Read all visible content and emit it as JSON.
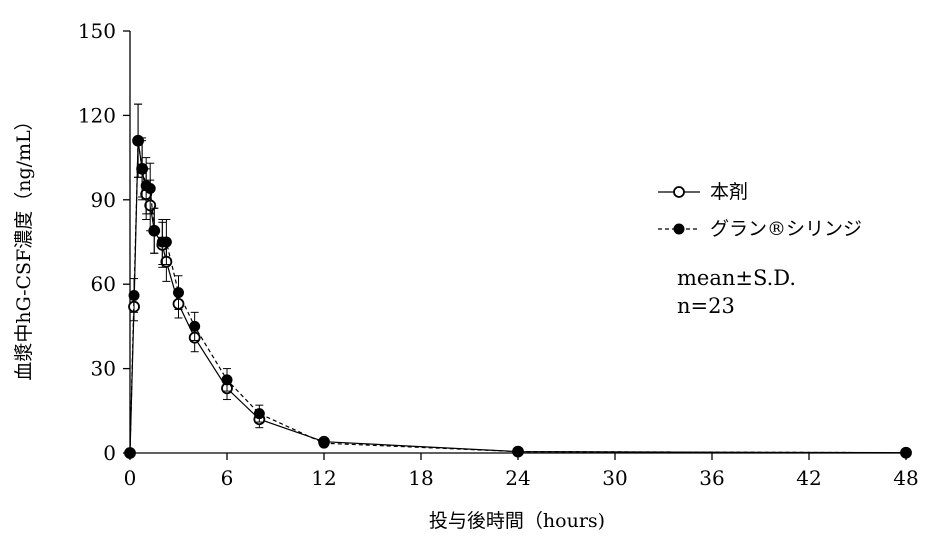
{
  "chart_data": {
    "type": "line",
    "title": "",
    "xlabel": "投与後時間（hours)",
    "ylabel": "血漿中hG-CSF濃度（ng/mL）",
    "xlim": [
      0,
      48
    ],
    "ylim": [
      0,
      150
    ],
    "x_ticks": [
      0,
      6,
      12,
      18,
      24,
      30,
      36,
      42,
      48
    ],
    "y_ticks": [
      0,
      30,
      60,
      90,
      120,
      150
    ],
    "x_tick_labels": [
      "0",
      "6",
      "12",
      "18",
      "24",
      "30",
      "36",
      "42",
      "48"
    ],
    "y_tick_labels": [
      "0",
      "30",
      "60",
      "90",
      "120",
      "150"
    ],
    "grid": false,
    "legend_position": "right",
    "series": [
      {
        "name": "本剤",
        "marker": "open-circle",
        "line_style": "solid",
        "x": [
          0,
          0.25,
          0.5,
          0.75,
          1,
          1.25,
          1.5,
          2,
          2.25,
          3,
          4,
          6,
          8,
          12,
          24,
          48
        ],
        "y": [
          0,
          52,
          111,
          101,
          92,
          88,
          79,
          74,
          68,
          53,
          41,
          23,
          12,
          4,
          0.5,
          0.1
        ],
        "sd": [
          0,
          5,
          13,
          10,
          9,
          9,
          8,
          8,
          7,
          5,
          5,
          4,
          3,
          1,
          0.2,
          0
        ],
        "color": "#000000"
      },
      {
        "name": "グラン®シリンジ",
        "marker": "filled-circle",
        "line_style": "dashed",
        "x": [
          0,
          0.25,
          0.5,
          0.75,
          1,
          1.25,
          1.5,
          2,
          2.25,
          3,
          4,
          6,
          8,
          12,
          24,
          48
        ],
        "y": [
          0,
          56,
          111,
          101,
          95,
          94,
          79,
          75,
          75,
          57,
          45,
          26,
          14,
          3.5,
          0.5,
          0.1
        ],
        "sd": [
          0,
          6,
          13,
          11,
          10,
          9,
          8,
          8,
          8,
          6,
          5,
          4,
          3,
          1,
          0.2,
          0
        ],
        "color": "#000000"
      }
    ],
    "annotations": [
      "mean±S.D.",
      "n=23"
    ]
  }
}
